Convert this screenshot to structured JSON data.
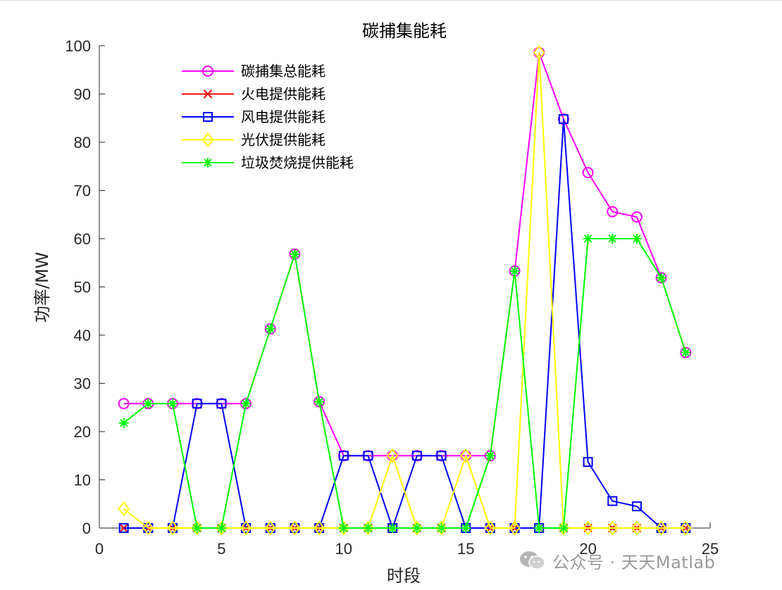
{
  "chart_data": {
    "type": "line",
    "title": "碳捕集能耗",
    "xlabel": "时段",
    "ylabel": "功率/MW",
    "xlim": [
      0,
      25
    ],
    "ylim": [
      0,
      100
    ],
    "x_ticks": [
      0,
      5,
      10,
      15,
      20,
      25
    ],
    "y_ticks": [
      0,
      10,
      20,
      30,
      40,
      50,
      60,
      70,
      80,
      90,
      100
    ],
    "grid": false,
    "legend_position": "top-left",
    "x": [
      1,
      2,
      3,
      4,
      5,
      6,
      7,
      8,
      9,
      10,
      11,
      12,
      13,
      14,
      15,
      16,
      17,
      18,
      19,
      20,
      21,
      22,
      23,
      24
    ],
    "series": [
      {
        "name": "碳捕集总能耗",
        "color": "#ff00ff",
        "marker": "circle",
        "values": [
          25.8,
          25.8,
          25.8,
          25.8,
          25.8,
          25.8,
          41.3,
          56.8,
          26.2,
          15.0,
          15.0,
          15.0,
          15.0,
          15.0,
          15.0,
          15.0,
          53.3,
          98.6,
          84.8,
          73.7,
          65.6,
          64.5,
          51.9,
          36.4
        ]
      },
      {
        "name": "火电提供能耗",
        "color": "#ff0000",
        "marker": "x",
        "values": [
          0,
          0,
          0,
          0,
          0,
          0,
          0,
          0,
          0,
          0,
          0,
          0,
          0,
          0,
          0,
          0,
          0,
          0,
          0,
          0,
          0,
          0,
          0,
          0
        ]
      },
      {
        "name": "风电提供能耗",
        "color": "#0000ff",
        "marker": "square",
        "values": [
          0,
          0,
          0,
          25.8,
          25.8,
          0,
          0,
          0,
          0,
          15.0,
          15.0,
          0,
          15.0,
          15.0,
          0,
          0,
          0,
          0,
          84.8,
          13.7,
          5.6,
          4.5,
          0,
          0
        ]
      },
      {
        "name": "光伏提供能耗",
        "color": "#ffff00",
        "marker": "diamond",
        "values": [
          4.0,
          0,
          0,
          0,
          0,
          0,
          0,
          0,
          0,
          0,
          0,
          15.0,
          0,
          0,
          15.0,
          0,
          0,
          98.6,
          0,
          0,
          0,
          0,
          0,
          0
        ]
      },
      {
        "name": "垃圾焚烧提供能耗",
        "color": "#00ff00",
        "marker": "asterisk",
        "values": [
          21.8,
          25.8,
          25.8,
          0,
          0,
          25.8,
          41.3,
          56.8,
          26.2,
          0,
          0,
          0,
          0,
          0,
          0,
          15.0,
          53.3,
          0,
          0,
          60.0,
          60.0,
          60.0,
          51.9,
          36.4
        ]
      }
    ]
  },
  "watermark": {
    "text": "公众号 · 天天Matlab",
    "icon": "wechat-icon"
  }
}
